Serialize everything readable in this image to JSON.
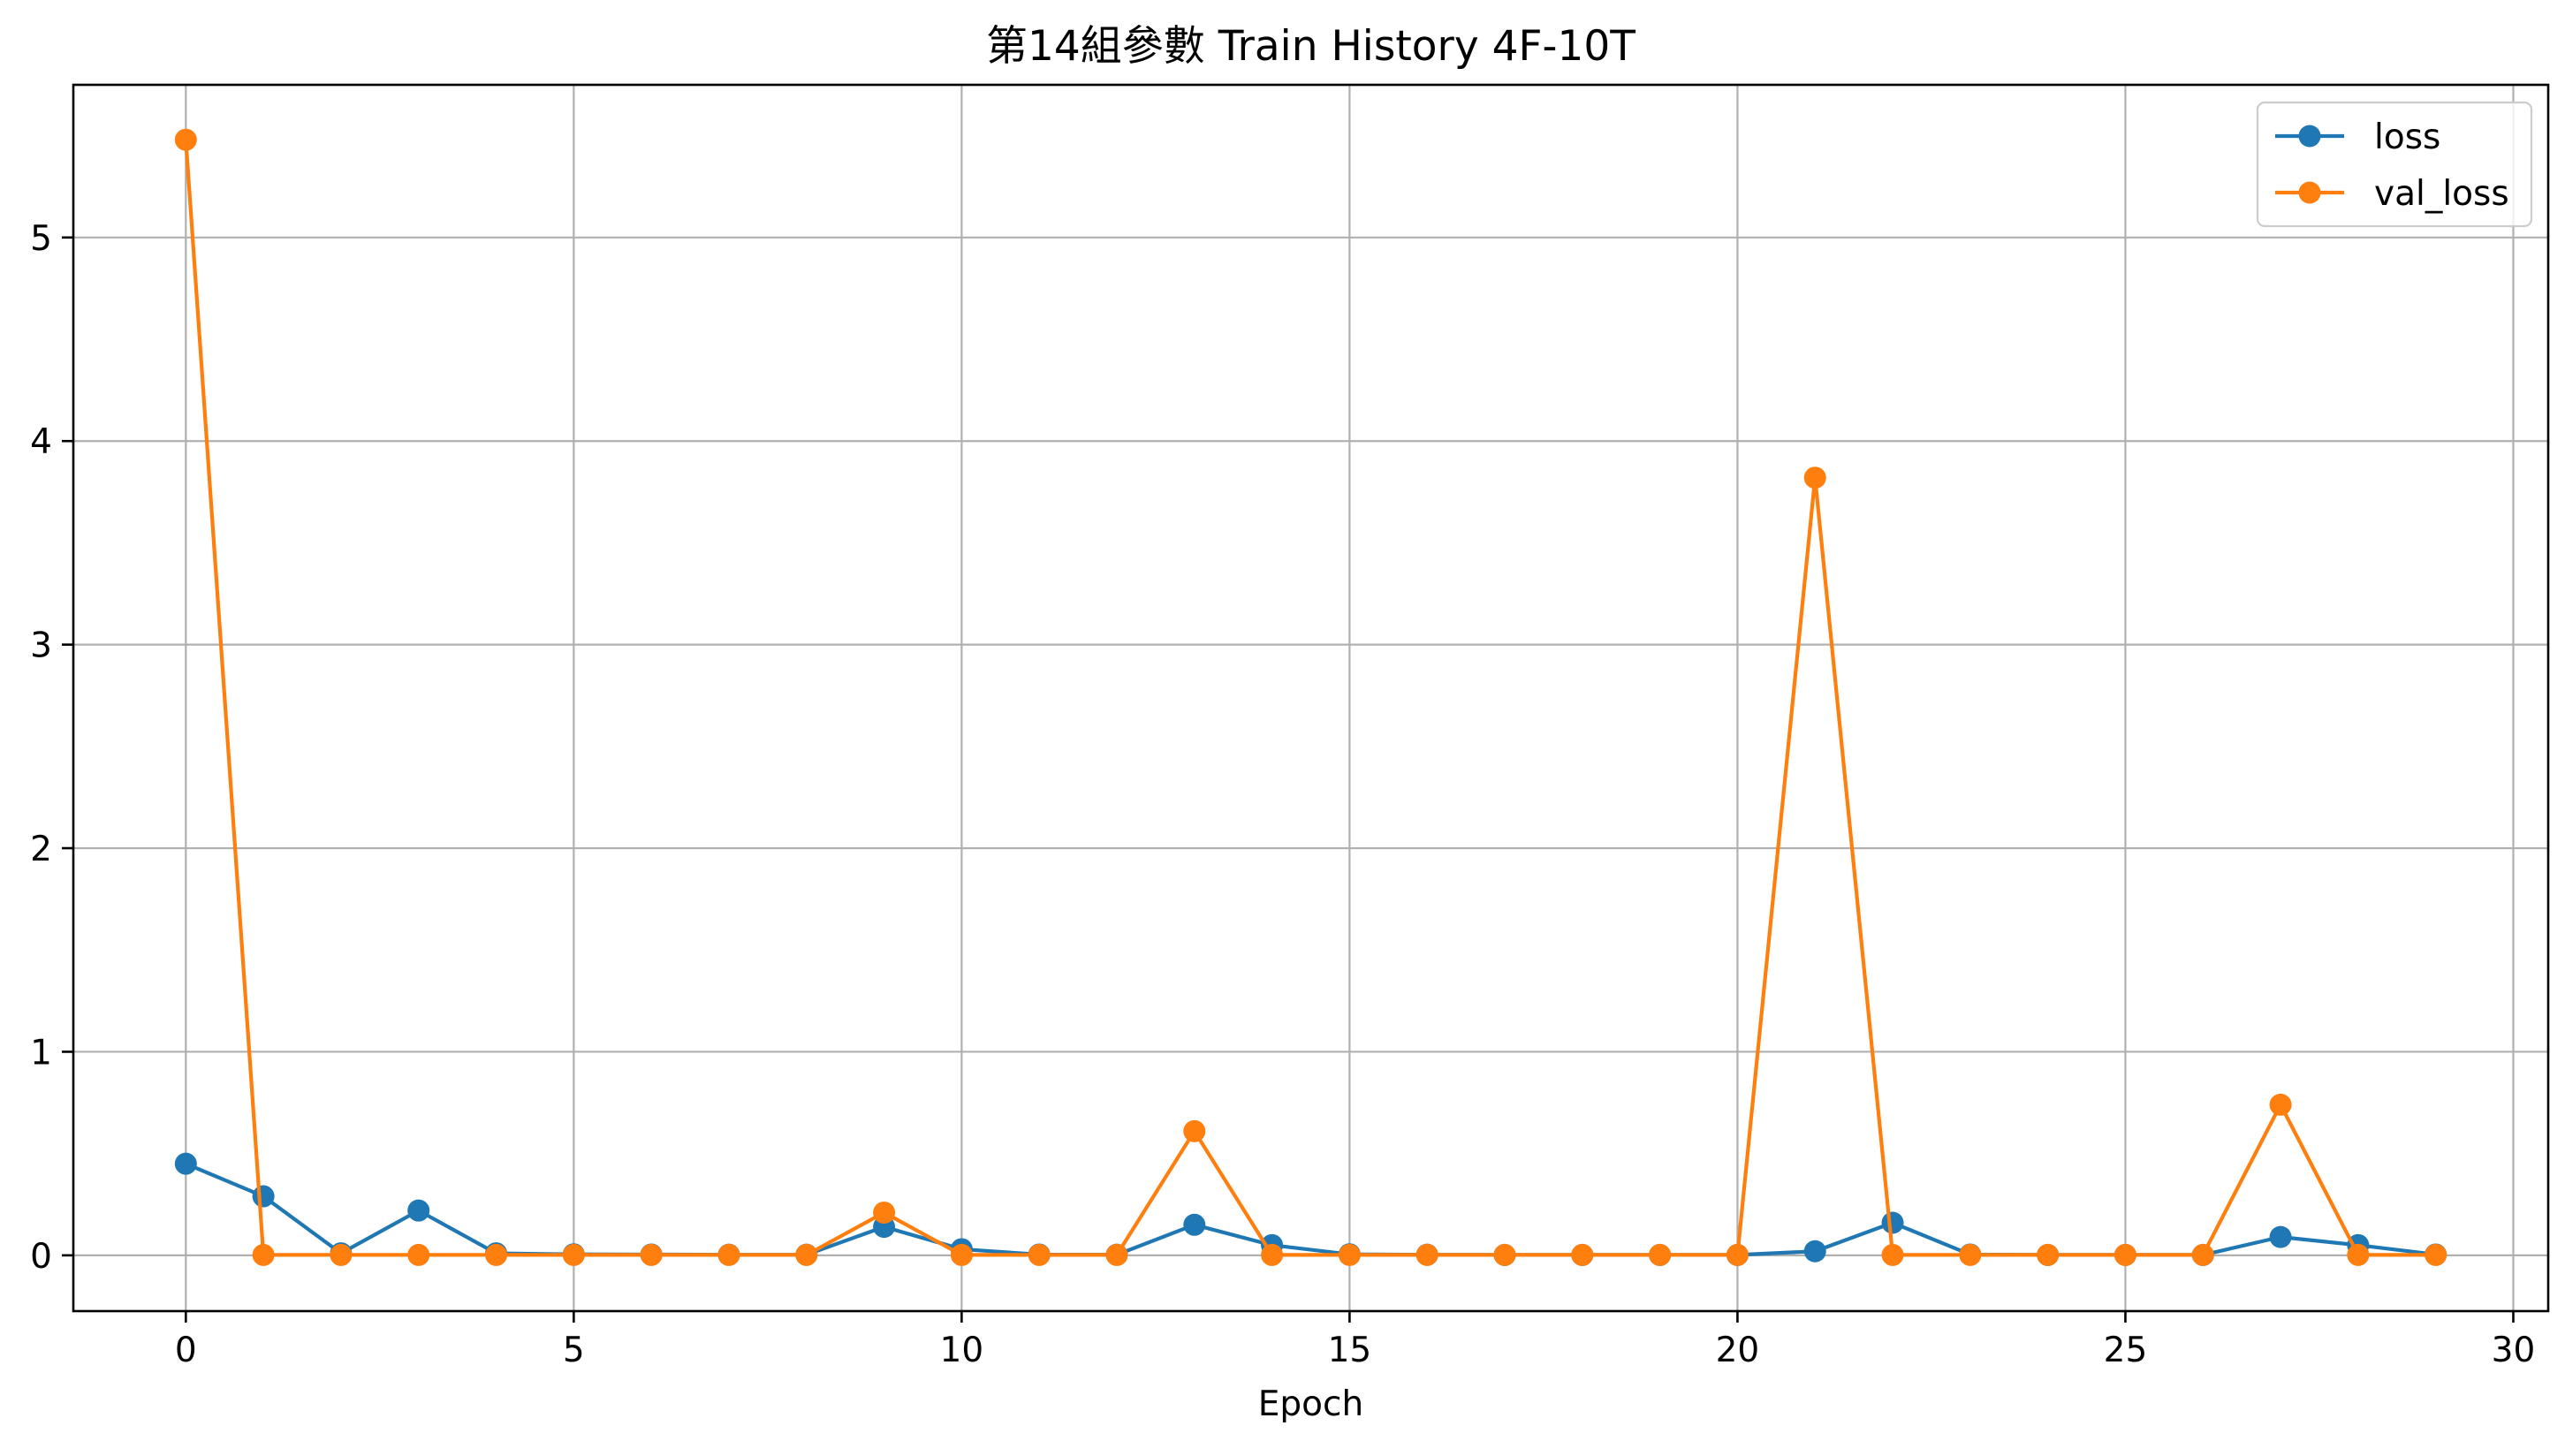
{
  "chart_data": {
    "type": "line",
    "title": "第14組參數 Train History 4F-10T",
    "xlabel": "Epoch",
    "ylabel": "",
    "xlim": [
      -1.45,
      30.45
    ],
    "ylim": [
      -0.274,
      5.75
    ],
    "xticks": [
      0,
      5,
      10,
      15,
      20,
      25,
      30
    ],
    "xtick_labels": [
      "0",
      "5",
      "10",
      "15",
      "20",
      "25",
      "30"
    ],
    "yticks": [
      0,
      1,
      2,
      3,
      4,
      5
    ],
    "ytick_labels": [
      "0",
      "1",
      "2",
      "3",
      "4",
      "5"
    ],
    "grid": true,
    "legend_position": "upper right",
    "series": [
      {
        "name": "loss",
        "color": "#1f77b4",
        "x": [
          0,
          1,
          2,
          3,
          4,
          5,
          6,
          7,
          8,
          9,
          10,
          11,
          12,
          13,
          14,
          15,
          16,
          17,
          18,
          19,
          20,
          21,
          22,
          23,
          24,
          25,
          26,
          27,
          28,
          29
        ],
        "values": [
          0.45,
          0.29,
          0.01,
          0.22,
          0.01,
          0.005,
          0.004,
          0.003,
          0.003,
          0.14,
          0.03,
          0.004,
          0.003,
          0.15,
          0.05,
          0.005,
          0.003,
          0.002,
          0.002,
          0.002,
          0.002,
          0.02,
          0.16,
          0.004,
          0.002,
          0.002,
          0.002,
          0.09,
          0.05,
          0.004
        ]
      },
      {
        "name": "val_loss",
        "color": "#ff7f0e",
        "x": [
          0,
          1,
          2,
          3,
          4,
          5,
          6,
          7,
          8,
          9,
          10,
          11,
          12,
          13,
          14,
          15,
          16,
          17,
          18,
          19,
          20,
          21,
          22,
          23,
          24,
          25,
          26,
          27,
          28,
          29
        ],
        "values": [
          5.48,
          0.002,
          0.002,
          0.002,
          0.002,
          0.002,
          0.002,
          0.002,
          0.002,
          0.21,
          0.002,
          0.002,
          0.002,
          0.61,
          0.002,
          0.002,
          0.002,
          0.002,
          0.002,
          0.002,
          0.002,
          3.82,
          0.002,
          0.002,
          0.002,
          0.002,
          0.002,
          0.74,
          0.002,
          0.002
        ]
      }
    ]
  }
}
